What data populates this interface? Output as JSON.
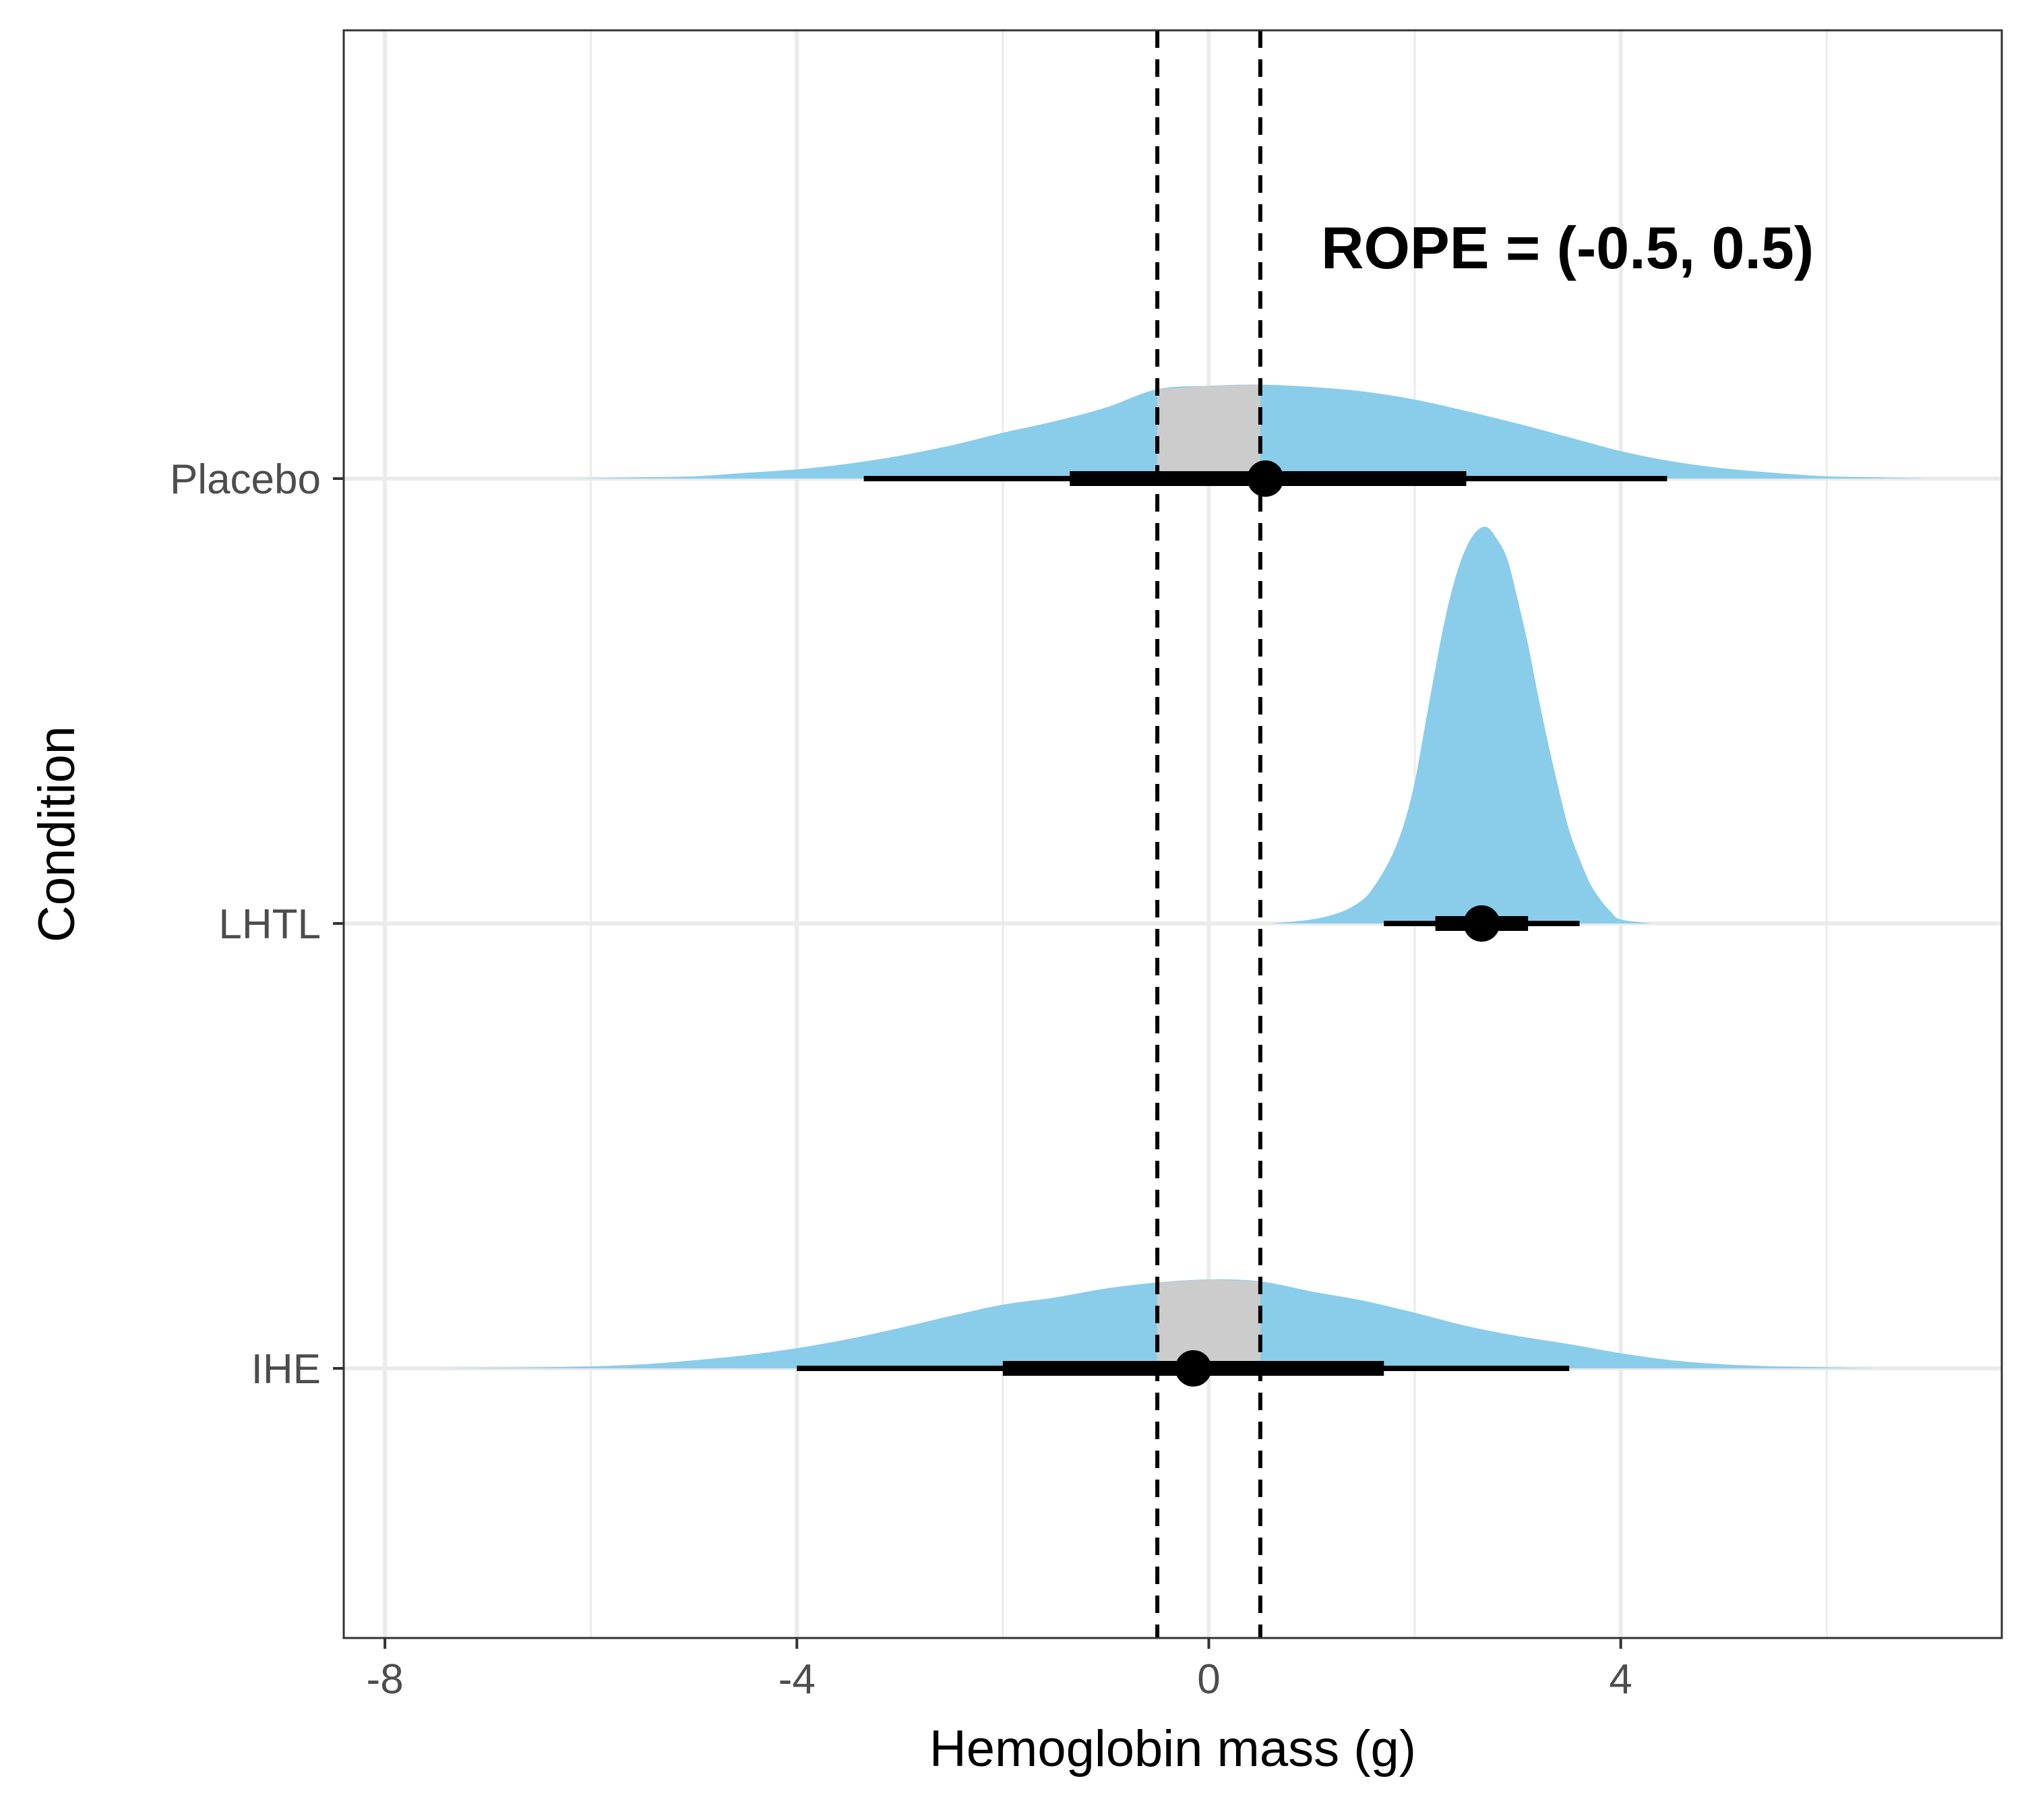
{
  "chart_data": {
    "type": "density-interval",
    "title": "",
    "xlabel": "Hemoglobin mass (g)",
    "ylabel": "Condition",
    "xlim": [
      -8.4,
      7.7
    ],
    "x_ticks": [
      -8,
      -4,
      0,
      4
    ],
    "x_tick_labels": [
      "-8",
      "-4",
      "0",
      "4"
    ],
    "grid": true,
    "annotation": "ROPE = (-0.5, 0.5)",
    "rope": [
      -0.5,
      0.5
    ],
    "colors": {
      "density": "#8ACDEA",
      "rope_fill": "#CCCCCC",
      "interval": "#000000",
      "grid": "#EBEBEB",
      "panel_border": "#333333"
    },
    "categories": [
      "Placebo",
      "LHTL",
      "IHE"
    ],
    "series": [
      {
        "name": "Placebo",
        "point": 0.55,
        "interval_66": [
          -1.35,
          2.5
        ],
        "interval_95": [
          -3.35,
          4.45
        ],
        "density_x": [
          -6.2,
          -5.5,
          -5.0,
          -4.5,
          -4.0,
          -3.5,
          -3.0,
          -2.5,
          -2.0,
          -1.5,
          -1.0,
          -0.5,
          0.0,
          0.5,
          1.0,
          1.5,
          2.0,
          2.5,
          3.0,
          3.5,
          4.0,
          4.5,
          5.0,
          5.5,
          6.0,
          6.5,
          7.0
        ],
        "density_y": [
          0.0,
          0.01,
          0.02,
          0.05,
          0.08,
          0.13,
          0.2,
          0.29,
          0.4,
          0.5,
          0.62,
          0.78,
          0.81,
          0.82,
          0.8,
          0.76,
          0.69,
          0.59,
          0.48,
          0.36,
          0.24,
          0.15,
          0.09,
          0.05,
          0.02,
          0.01,
          0.0
        ]
      },
      {
        "name": "LHTL",
        "point": 2.65,
        "interval_66": [
          2.2,
          3.1
        ],
        "interval_95": [
          1.7,
          3.6
        ],
        "density_x": [
          0.6,
          1.0,
          1.3,
          1.5,
          1.6,
          1.7,
          1.8,
          1.9,
          2.0,
          2.1,
          2.2,
          2.3,
          2.4,
          2.5,
          2.6,
          2.7,
          2.8,
          2.9,
          3.0,
          3.1,
          3.2,
          3.3,
          3.4,
          3.5,
          3.6,
          3.7,
          3.8,
          3.9,
          4.0,
          4.3
        ],
        "density_y": [
          0.0,
          0.01,
          0.03,
          0.06,
          0.09,
          0.13,
          0.18,
          0.25,
          0.35,
          0.49,
          0.63,
          0.76,
          0.86,
          0.93,
          0.97,
          0.98,
          0.95,
          0.9,
          0.8,
          0.69,
          0.56,
          0.44,
          0.33,
          0.23,
          0.16,
          0.1,
          0.06,
          0.03,
          0.01,
          0.0
        ]
      },
      {
        "name": "IHE",
        "point": -0.15,
        "interval_66": [
          -2.0,
          1.7
        ],
        "interval_95": [
          -4.0,
          3.5
        ],
        "density_x": [
          -7.5,
          -6.5,
          -6.0,
          -5.5,
          -5.0,
          -4.5,
          -4.0,
          -3.5,
          -3.0,
          -2.5,
          -2.0,
          -1.5,
          -1.0,
          -0.5,
          0.0,
          0.5,
          1.0,
          1.5,
          2.0,
          2.5,
          3.0,
          3.5,
          4.0,
          4.5,
          5.0,
          5.5,
          6.0,
          6.5
        ],
        "density_y": [
          0.0,
          0.01,
          0.02,
          0.04,
          0.08,
          0.13,
          0.2,
          0.29,
          0.4,
          0.52,
          0.63,
          0.7,
          0.79,
          0.85,
          0.88,
          0.86,
          0.76,
          0.67,
          0.55,
          0.42,
          0.32,
          0.24,
          0.15,
          0.08,
          0.04,
          0.02,
          0.01,
          0.0
        ]
      }
    ]
  }
}
